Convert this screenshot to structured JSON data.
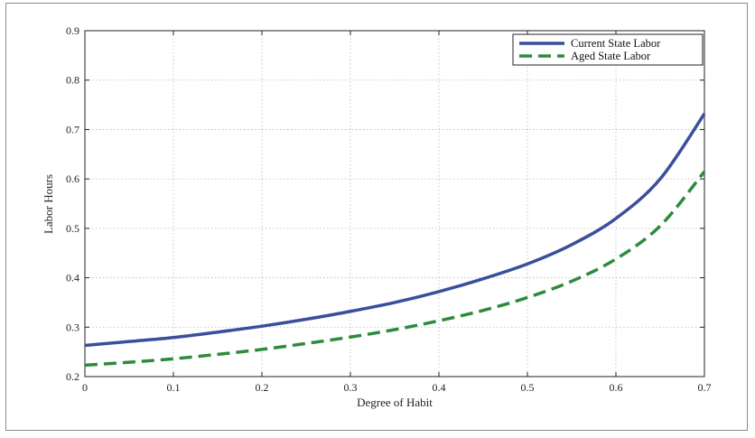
{
  "chart_data": {
    "type": "line",
    "title": "",
    "xlabel": "Degree of Habit",
    "ylabel": "Labor Hours",
    "xlim": [
      0,
      0.7
    ],
    "ylim": [
      0.2,
      0.9
    ],
    "xticks": [
      "0",
      "0.1",
      "0.2",
      "0.3",
      "0.4",
      "0.5",
      "0.6",
      "0.7"
    ],
    "yticks": [
      "0.2",
      "0.3",
      "0.4",
      "0.5",
      "0.6",
      "0.7",
      "0.8",
      "0.9"
    ],
    "grid": true,
    "legend_position": "top-right",
    "x": [
      0,
      0.05,
      0.1,
      0.15,
      0.2,
      0.25,
      0.3,
      0.35,
      0.4,
      0.45,
      0.5,
      0.55,
      0.6,
      0.65,
      0.7
    ],
    "series": [
      {
        "name": "Current State Labor",
        "color": "#3a4f9c",
        "style": "solid",
        "values": [
          0.263,
          0.271,
          0.279,
          0.29,
          0.302,
          0.316,
          0.332,
          0.35,
          0.372,
          0.398,
          0.428,
          0.467,
          0.52,
          0.6,
          0.732
        ]
      },
      {
        "name": "Aged State Labor",
        "color": "#2e8a3e",
        "style": "dashed",
        "values": [
          0.223,
          0.229,
          0.236,
          0.245,
          0.255,
          0.267,
          0.28,
          0.295,
          0.313,
          0.334,
          0.36,
          0.393,
          0.438,
          0.505,
          0.615
        ]
      }
    ]
  }
}
